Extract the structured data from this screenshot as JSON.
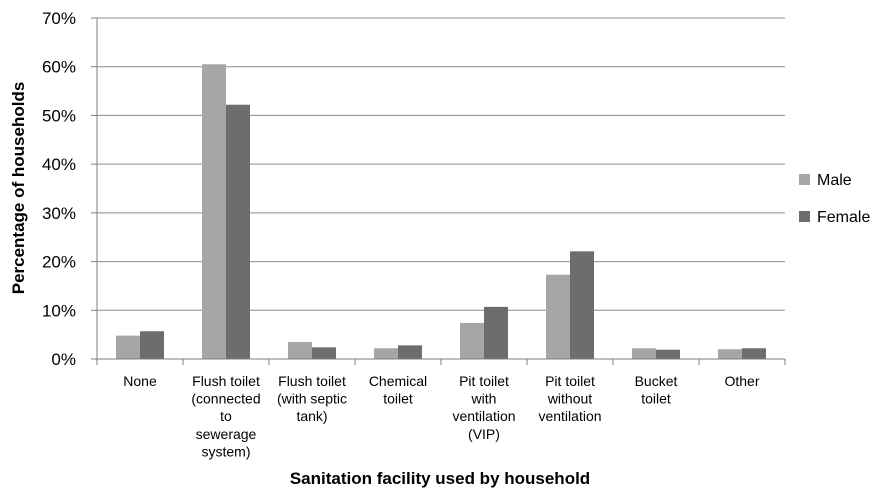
{
  "chart_data": {
    "type": "bar",
    "xlabel": "Sanitation facility used by household",
    "ylabel": "Percentage of households",
    "ylim": [
      0,
      70
    ],
    "yticks": [
      "0%",
      "10%",
      "20%",
      "30%",
      "40%",
      "50%",
      "60%",
      "70%"
    ],
    "ytick_values": [
      0,
      10,
      20,
      30,
      40,
      50,
      60,
      70
    ],
    "grid": true,
    "legend_position": "right",
    "categories": [
      [
        "None"
      ],
      [
        "Flush toilet",
        "(connected",
        "to",
        "sewerage",
        "system)"
      ],
      [
        "Flush toilet",
        "(with septic",
        "tank)"
      ],
      [
        "Chemical",
        "toilet"
      ],
      [
        "Pit toilet",
        "with",
        "ventilation",
        "(VIP)"
      ],
      [
        "Pit toilet",
        "without",
        "ventilation"
      ],
      [
        "Bucket",
        "toilet"
      ],
      [
        "Other"
      ]
    ],
    "series": [
      {
        "name": "Male",
        "color": "#a6a6a6",
        "values": [
          4.8,
          60.5,
          3.5,
          2.2,
          7.4,
          17.3,
          2.2,
          2.0
        ]
      },
      {
        "name": "Female",
        "color": "#6d6d6d",
        "values": [
          5.7,
          52.2,
          2.4,
          2.8,
          10.7,
          22.1,
          1.9,
          2.2
        ]
      }
    ]
  }
}
